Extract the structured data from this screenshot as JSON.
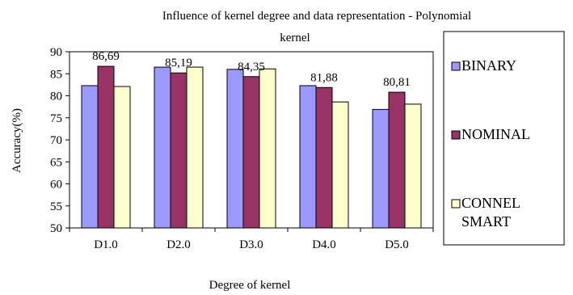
{
  "chart_data": {
    "type": "bar",
    "title": "Influence of kernel degree and data representation - Polynomial kernel",
    "title_lines": [
      "Influence of kernel degree and data representation - Polynomial",
      "kernel"
    ],
    "xlabel": "Degree of kernel",
    "ylabel": "Accuracy(%)",
    "categories": [
      "D1.0",
      "D2.0",
      "D3.0",
      "D4.0",
      "D5.0"
    ],
    "ylim": [
      50,
      90
    ],
    "yticks": [
      50,
      55,
      60,
      65,
      70,
      75,
      80,
      85,
      90
    ],
    "grid": false,
    "legend_position": "right",
    "series": [
      {
        "name": "BINARY",
        "name_lines": [
          "BINARY"
        ],
        "color": "#9999FF",
        "values": [
          82.3,
          86.5,
          86.0,
          82.3,
          76.9
        ]
      },
      {
        "name": "NOMINAL",
        "name_lines": [
          "NOMINAL"
        ],
        "color": "#993366",
        "values": [
          86.69,
          85.19,
          84.35,
          81.88,
          80.81
        ]
      },
      {
        "name": "CONNEL SMART",
        "name_lines": [
          "CONNEL",
          "SMART"
        ],
        "color": "#FFFFCC",
        "values": [
          82.1,
          86.5,
          86.1,
          78.6,
          78.1
        ]
      }
    ],
    "data_labels": [
      {
        "category": "D1.0",
        "series": "NOMINAL",
        "text": "86,69"
      },
      {
        "category": "D2.0",
        "series": "NOMINAL",
        "text": "85,19"
      },
      {
        "category": "D3.0",
        "series": "NOMINAL",
        "text": "84,35"
      },
      {
        "category": "D4.0",
        "series": "NOMINAL",
        "text": "81,88"
      },
      {
        "category": "D5.0",
        "series": "NOMINAL",
        "text": "80,81"
      }
    ]
  }
}
